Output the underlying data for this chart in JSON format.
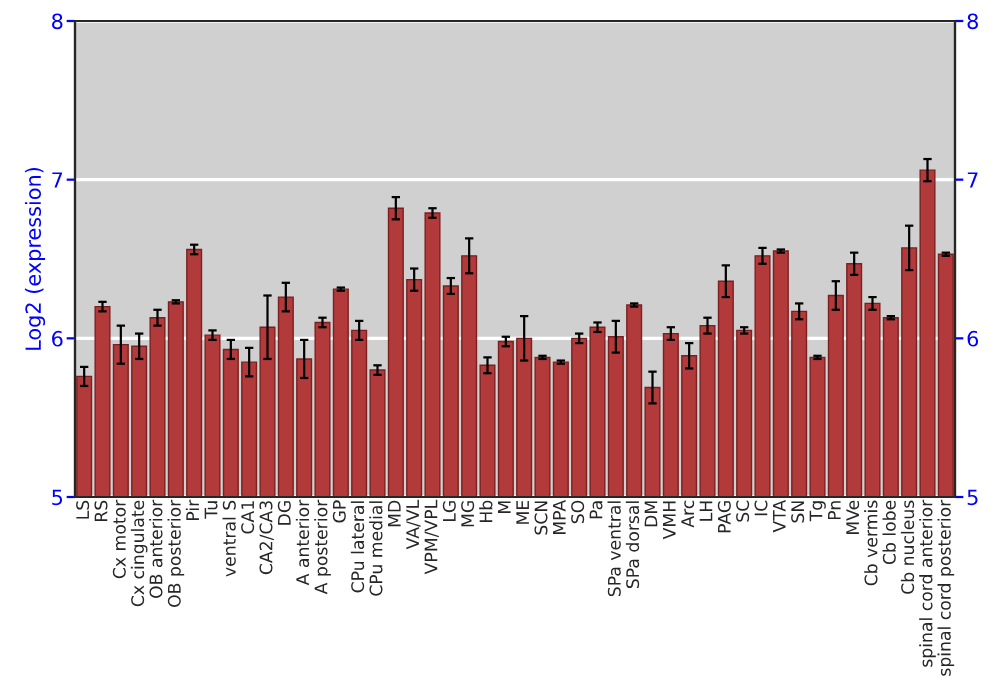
{
  "chart_data": {
    "type": "bar",
    "ylabel": "Log2 (expression)",
    "categories": [
      "LS",
      "RS",
      "Cx motor",
      "Cx cingulate",
      "OB anterior",
      "OB posterior",
      "Pir",
      "Tu",
      "ventral S",
      "CA1",
      "CA2/CA3",
      "DG",
      "A anterior",
      "A posterior",
      "GP",
      "CPu lateral",
      "CPu medial",
      "MD",
      "VA/VL",
      "VPM/VPL",
      "LG",
      "MG",
      "Hb",
      "M",
      "ME",
      "SCN",
      "MPA",
      "SO",
      "Pa",
      "SPa ventral",
      "SPa dorsal",
      "DM",
      "VMH",
      "Arc",
      "LH",
      "PAG",
      "SC",
      "IC",
      "VTA",
      "SN",
      "Tg",
      "Pn",
      "MVe",
      "Cb vermis",
      "Cb lobe",
      "Cb nucleus",
      "spinal cord anterior",
      "spinal cord posterior"
    ],
    "values": [
      5.76,
      6.2,
      5.96,
      5.95,
      6.13,
      6.23,
      6.56,
      6.02,
      5.93,
      5.85,
      6.07,
      6.26,
      5.87,
      6.1,
      6.31,
      6.05,
      5.8,
      6.82,
      6.37,
      6.79,
      6.33,
      6.52,
      5.83,
      5.98,
      6.0,
      5.88,
      5.85,
      6.0,
      6.07,
      6.01,
      6.21,
      5.69,
      6.03,
      5.89,
      6.08,
      6.36,
      6.05,
      6.52,
      6.55,
      6.17,
      5.88,
      6.27,
      6.47,
      6.22,
      6.13,
      6.57,
      7.06,
      6.53
    ],
    "errors": [
      0.06,
      0.03,
      0.12,
      0.08,
      0.05,
      0.01,
      0.03,
      0.03,
      0.06,
      0.09,
      0.2,
      0.09,
      0.12,
      0.03,
      0.01,
      0.06,
      0.03,
      0.07,
      0.07,
      0.03,
      0.05,
      0.11,
      0.05,
      0.03,
      0.14,
      0.01,
      0.01,
      0.03,
      0.03,
      0.1,
      0.01,
      0.1,
      0.04,
      0.08,
      0.05,
      0.1,
      0.02,
      0.05,
      0.01,
      0.05,
      0.01,
      0.09,
      0.07,
      0.04,
      0.01,
      0.14,
      0.07,
      0.01
    ],
    "color": "#b23a3a",
    "ylim": [
      5,
      8
    ],
    "yticks": [
      5,
      6,
      7,
      8
    ],
    "y2lim": [
      5,
      8
    ],
    "y2ticks": [
      5,
      6,
      7,
      8
    ],
    "grid": "y",
    "legend": false
  }
}
